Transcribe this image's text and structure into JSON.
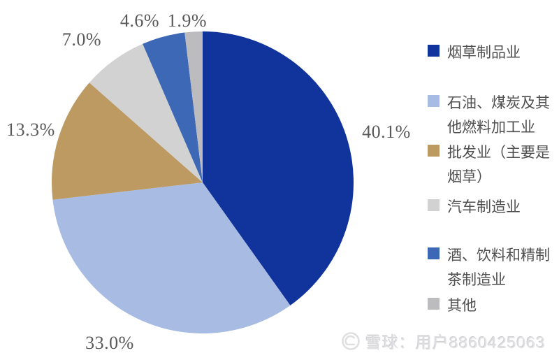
{
  "chart_data": {
    "type": "pie",
    "title": "",
    "categories": [
      "烟草制品业",
      "石油、煤炭及其他燃料加工业",
      "批发业（主要是烟草）",
      "汽车制造业",
      "酒、饮料和精制茶制造业",
      "其他"
    ],
    "values": [
      40.1,
      33.0,
      13.3,
      7.0,
      4.6,
      1.9
    ],
    "labels": [
      "40.1%",
      "33.0%",
      "13.3%",
      "7.0%",
      "4.6%",
      "1.9%"
    ],
    "colors": [
      "#10339c",
      "#a8bbe3",
      "#bc9a61",
      "#d2d2d2",
      "#3d68b5",
      "#bcbcbe"
    ],
    "label_color": "#595959",
    "direction": "clockwise",
    "start_angle_deg": 0,
    "legend_position": "right",
    "grid": false
  },
  "watermark": {
    "icon": "xueqiu-logo",
    "text": "雪球：用户8860425063"
  }
}
